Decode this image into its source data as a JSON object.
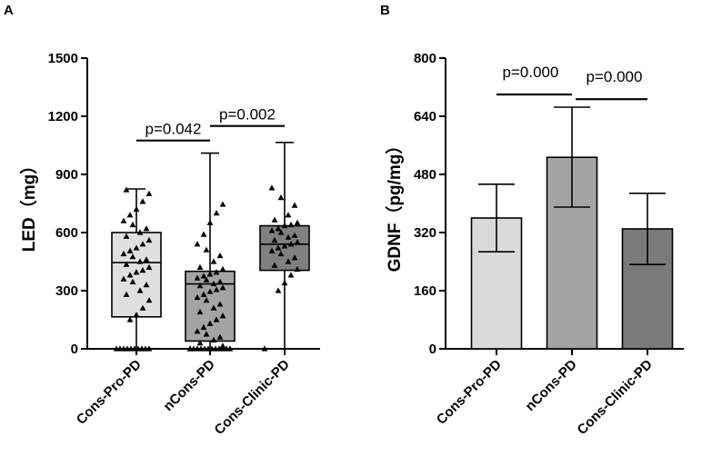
{
  "chart_data": [
    {
      "panel": "A",
      "type": "box",
      "ylabel": "LED（mg）",
      "ylim": [
        0,
        1500
      ],
      "yticks": [
        "0",
        "300",
        "600",
        "900",
        "1200",
        "1500"
      ],
      "categories": [
        "Cons-Pro-PD",
        "nCons-PD",
        "Cons-Clinic-PD"
      ],
      "colors": [
        "#e0e0e0",
        "#a4a4a4",
        "#808080"
      ],
      "boxes": [
        {
          "min": 0,
          "q1": 165,
          "median": 445,
          "q3": 600,
          "max": 825
        },
        {
          "min": 0,
          "q1": 40,
          "median": 335,
          "q3": 400,
          "max": 1010
        },
        {
          "min": 0,
          "q1": 405,
          "median": 540,
          "q3": 635,
          "max": 1065
        }
      ],
      "points": [
        [
          0,
          0,
          0,
          0,
          0,
          0,
          0,
          0,
          0,
          0,
          150,
          175,
          210,
          250,
          280,
          300,
          330,
          345,
          360,
          380,
          395,
          405,
          420,
          435,
          450,
          460,
          475,
          490,
          505,
          520,
          540,
          560,
          580,
          600,
          620,
          640,
          660,
          690,
          720,
          760,
          800,
          820
        ],
        [
          0,
          0,
          0,
          0,
          0,
          0,
          0,
          0,
          0,
          0,
          0,
          0,
          0,
          15,
          30,
          45,
          60,
          75,
          90,
          110,
          130,
          150,
          170,
          190,
          210,
          230,
          250,
          265,
          280,
          295,
          305,
          315,
          325,
          335,
          345,
          355,
          365,
          375,
          385,
          395,
          410,
          420,
          450,
          480,
          510,
          540,
          590,
          650,
          700,
          745
        ],
        [
          0,
          300,
          340,
          380,
          410,
          430,
          450,
          470,
          490,
          505,
          520,
          530,
          540,
          550,
          560,
          575,
          585,
          600,
          610,
          620,
          635,
          640,
          650,
          665,
          690,
          740,
          780,
          830
        ]
      ],
      "comparisons": [
        {
          "label": "p=0.042",
          "from": 0,
          "to": 1,
          "at": 1075
        },
        {
          "label": "p=0.002",
          "from": 1,
          "to": 2,
          "at": 1150
        }
      ]
    },
    {
      "panel": "B",
      "type": "bar",
      "ylabel": "GDNF（pg/mg）",
      "ylim": [
        0,
        800
      ],
      "yticks": [
        "0",
        "160",
        "320",
        "480",
        "640",
        "800"
      ],
      "categories": [
        "Cons-Pro-PD",
        "nCons-PD",
        "Cons-Clinic-PD"
      ],
      "colors": [
        "#d9d9d9",
        "#a4a4a4",
        "#7a7a7a"
      ],
      "values": [
        360,
        527,
        330
      ],
      "err_low": [
        267,
        390,
        232
      ],
      "err_high": [
        453,
        665,
        428
      ],
      "comparisons": [
        {
          "label": "p=0.000",
          "from": 0,
          "to": 1,
          "at": 700
        },
        {
          "label": "p=0.000",
          "from": 1,
          "to": 2,
          "at": 687
        }
      ]
    }
  ]
}
